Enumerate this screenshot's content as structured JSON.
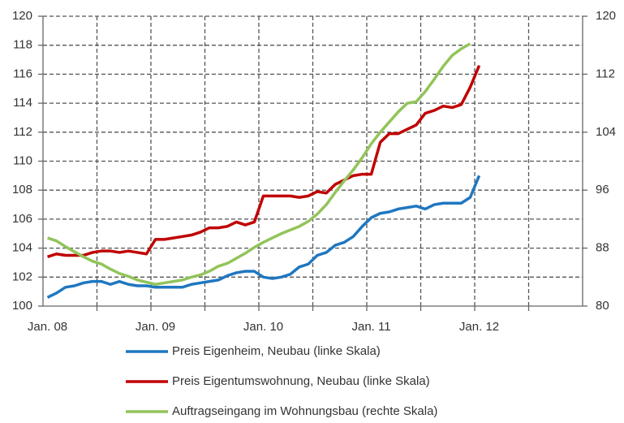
{
  "chart_data": {
    "type": "line",
    "categories": [
      "Jan. 08",
      null,
      null,
      null,
      null,
      null,
      null,
      null,
      null,
      null,
      null,
      null,
      "Jan. 09",
      null,
      null,
      null,
      null,
      null,
      null,
      null,
      null,
      null,
      null,
      null,
      "Jan. 10",
      null,
      null,
      null,
      null,
      null,
      null,
      null,
      null,
      null,
      null,
      null,
      "Jan. 11",
      null,
      null,
      null,
      null,
      null,
      null,
      null,
      null,
      null,
      null,
      null,
      "Jan. 12",
      null,
      null,
      null,
      null,
      null,
      null,
      null,
      null,
      null,
      null,
      null
    ],
    "ylim": [
      100,
      120
    ],
    "yticks": [
      100,
      102,
      104,
      106,
      108,
      110,
      112,
      114,
      116,
      118,
      120
    ],
    "y2lim": [
      80,
      120
    ],
    "y2ticks": [
      80,
      88,
      96,
      104,
      112,
      120
    ],
    "grid": true,
    "series": [
      {
        "name": "Preis Eigenheim, Neubau (linke Skala)",
        "color": "#1f77c0",
        "values": [
          100.6,
          100.9,
          101.3,
          101.4,
          101.6,
          101.7,
          101.7,
          101.5,
          101.7,
          101.5,
          101.4,
          101.4,
          101.3,
          101.3,
          101.3,
          101.3,
          101.5,
          101.6,
          101.7,
          101.8,
          102.1,
          102.3,
          102.4,
          102.4,
          102.0,
          101.9,
          102.0,
          102.2,
          102.7,
          102.9,
          103.5,
          103.7,
          104.2,
          104.4,
          104.8,
          105.5,
          106.1,
          106.4,
          106.5,
          106.7,
          106.8,
          106.9,
          106.7,
          107.0,
          107.1,
          107.1,
          107.1,
          107.5,
          109.0,
          null,
          null,
          null,
          null,
          null,
          null,
          null,
          null,
          null,
          null,
          null
        ]
      },
      {
        "name": "Preis Eigentumswohnung, Neubau (linke Skala)",
        "color": "#c00000",
        "values": [
          103.4,
          103.6,
          103.5,
          103.5,
          103.5,
          103.7,
          103.8,
          103.8,
          103.7,
          103.8,
          103.7,
          103.6,
          104.6,
          104.6,
          104.7,
          104.8,
          104.9,
          105.1,
          105.4,
          105.4,
          105.5,
          105.8,
          105.6,
          105.8,
          107.6,
          107.6,
          107.6,
          107.6,
          107.5,
          107.6,
          107.9,
          107.8,
          108.4,
          108.7,
          109.0,
          109.1,
          109.1,
          111.3,
          111.9,
          111.9,
          112.2,
          112.5,
          113.3,
          113.5,
          113.8,
          113.7,
          113.9,
          115.1,
          116.6,
          null,
          null,
          null,
          null,
          null,
          null,
          null,
          null,
          null,
          null,
          null
        ]
      },
      {
        "name": "Auftragseingang im Wohnungsbau (rechte Skala)",
        "color": "#92c45a",
        "axis": "y2",
        "values": [
          89.4,
          89.0,
          88.2,
          87.5,
          86.8,
          86.2,
          85.8,
          85.1,
          84.5,
          84.1,
          83.6,
          83.3,
          83.0,
          83.2,
          83.4,
          83.6,
          84.0,
          84.3,
          84.8,
          85.5,
          85.9,
          86.6,
          87.3,
          88.1,
          88.8,
          89.4,
          90.0,
          90.5,
          91.0,
          91.7,
          92.7,
          94.0,
          95.7,
          97.3,
          98.8,
          100.5,
          102.4,
          104.0,
          105.4,
          106.8,
          108.0,
          108.2,
          109.6,
          111.3,
          113.1,
          114.6,
          115.5,
          116.2,
          null,
          null,
          null,
          null,
          null,
          null,
          null,
          null,
          null,
          null,
          null,
          null
        ]
      }
    ]
  }
}
